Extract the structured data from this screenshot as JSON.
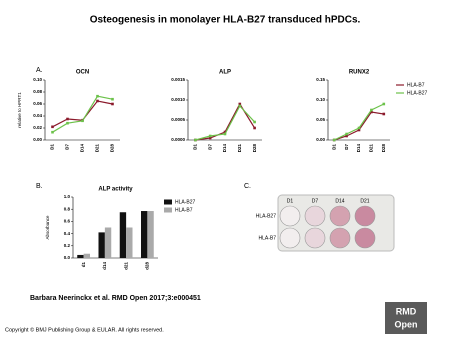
{
  "title": "Osteogenesis in monolayer HLA-B27 transduced hPDCs.",
  "panel_labels": [
    "A.",
    "B.",
    "C."
  ],
  "chart_data": [
    {
      "type": "line",
      "title": "OCN",
      "y_label": "relative to HPRT1",
      "categories": [
        "D1",
        "D7",
        "D14",
        "D21",
        "D28"
      ],
      "series": [
        {
          "name": "HLA-B7",
          "color": "#8b1a2b",
          "values": [
            0.022,
            0.035,
            0.033,
            0.065,
            0.06
          ]
        },
        {
          "name": "HLA-B27",
          "color": "#6cc24a",
          "values": [
            0.013,
            0.028,
            0.032,
            0.073,
            0.068
          ]
        }
      ],
      "ylim": [
        0,
        0.1
      ],
      "yticks": [
        {
          "value": 0,
          "label": "0.00"
        },
        {
          "value": 0.02,
          "label": "0.02"
        },
        {
          "value": 0.04,
          "label": "0.04"
        },
        {
          "value": 0.06,
          "label": "0.06"
        },
        {
          "value": 0.08,
          "label": "0.08"
        },
        {
          "value": 0.1,
          "label": "0.10"
        }
      ]
    },
    {
      "type": "line",
      "title": "ALP",
      "categories": [
        "D1",
        "D7",
        "D14",
        "D21",
        "D28"
      ],
      "series": [
        {
          "name": "HLA-B7",
          "color": "#8b1a2b",
          "values": [
            0,
            5e-05,
            0.0002,
            0.0009,
            0.0003
          ]
        },
        {
          "name": "HLA-B27",
          "color": "#6cc24a",
          "values": [
            0,
            0.0001,
            0.00015,
            0.00085,
            0.00045
          ]
        }
      ],
      "ylim": [
        0,
        0.0015
      ],
      "yticks": [
        {
          "value": 0,
          "label": "0.0000"
        },
        {
          "value": 0.0005,
          "label": "0.0005"
        },
        {
          "value": 0.001,
          "label": "0.0010"
        },
        {
          "value": 0.0015,
          "label": "0.0015"
        }
      ]
    },
    {
      "type": "line",
      "title": "RUNX2",
      "legend": "right",
      "categories": [
        "D1",
        "D7",
        "D14",
        "D21",
        "D28"
      ],
      "series": [
        {
          "name": "HLA-B7",
          "color": "#8b1a2b",
          "values": [
            0,
            0.01,
            0.025,
            0.07,
            0.065
          ]
        },
        {
          "name": "HLA-B27",
          "color": "#6cc24a",
          "values": [
            0,
            0.015,
            0.03,
            0.075,
            0.09
          ]
        }
      ],
      "ylim": [
        0,
        0.15
      ],
      "yticks": [
        {
          "value": 0,
          "label": "0.00"
        },
        {
          "value": 0.05,
          "label": "0.05"
        },
        {
          "value": 0.1,
          "label": "0.10"
        },
        {
          "value": 0.15,
          "label": "0.15"
        }
      ]
    },
    {
      "type": "bar",
      "title": "ALP activity",
      "y_label": "Absorbance",
      "legend": "right",
      "categories": [
        "d1",
        "d14",
        "d21",
        "d28"
      ],
      "series": [
        {
          "name": "HLA-B27",
          "color": "#111111",
          "values": [
            0.05,
            0.42,
            0.75,
            0.77
          ]
        },
        {
          "name": "HLA-B7",
          "color": "#aaaaaa",
          "values": [
            0.07,
            0.5,
            0.5,
            0.77
          ]
        }
      ],
      "ylim": [
        0,
        1
      ],
      "yticks": [
        {
          "value": 0,
          "label": "0.0"
        },
        {
          "value": 0.2,
          "label": "0.2"
        },
        {
          "value": 0.4,
          "label": "0.4"
        },
        {
          "value": 0.6,
          "label": "0.6"
        },
        {
          "value": 0.8,
          "label": "0.8"
        },
        {
          "value": 1,
          "label": "1.0"
        }
      ]
    }
  ],
  "plate": {
    "columns": [
      "D1",
      "D7",
      "D14",
      "D21"
    ],
    "rows": [
      "HLA-B27",
      "HLA-B7"
    ]
  },
  "citation": "Barbara Neerinckx et al. RMD Open 2017;3:e000451",
  "copyright": "Copyright © BMJ Publishing Group & EULAR. All rights reserved.",
  "logo": [
    "RMD",
    "Open"
  ]
}
